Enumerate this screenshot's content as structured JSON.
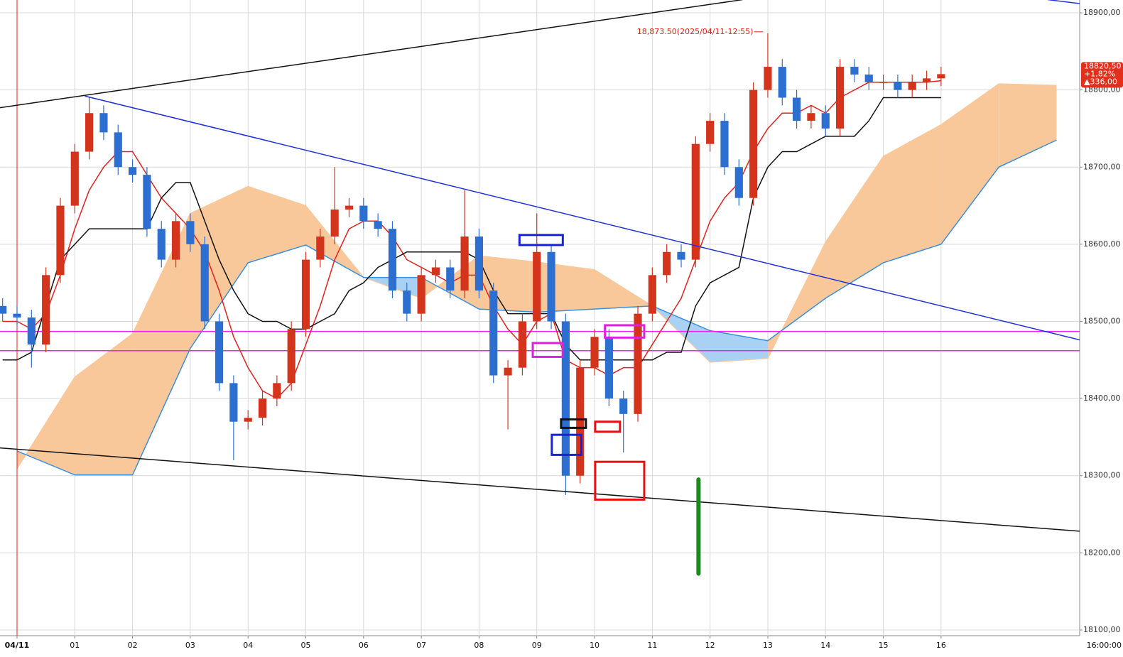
{
  "chart_data": {
    "type": "candlestick",
    "x": [
      -0.25,
      0,
      0.25,
      0.5,
      0.75,
      1,
      1.25,
      1.5,
      1.75,
      2,
      2.25,
      2.5,
      2.75,
      3,
      3.25,
      3.5,
      3.75,
      4,
      4.25,
      4.5,
      4.75,
      5,
      5.25,
      5.5,
      5.75,
      6,
      6.25,
      6.5,
      6.75,
      7,
      7.25,
      7.5,
      7.75,
      8,
      8.25,
      8.5,
      8.75,
      9,
      9.25,
      9.5,
      9.75,
      10,
      10.25,
      10.5,
      10.75,
      11,
      11.25,
      11.5,
      11.75,
      12,
      12.25,
      12.5,
      12.75,
      13,
      13.25,
      13.5,
      13.75,
      14,
      14.25,
      14.5,
      14.75,
      15,
      15.25,
      15.5,
      15.75,
      16
    ],
    "open": [
      18520,
      18510,
      18505,
      18470,
      18560,
      18650,
      18720,
      18770,
      18745,
      18700,
      18690,
      18620,
      18580,
      18630,
      18600,
      18500,
      18420,
      18370,
      18375,
      18400,
      18420,
      18490,
      18580,
      18610,
      18645,
      18650,
      18630,
      18620,
      18540,
      18510,
      18560,
      18570,
      18540,
      18610,
      18540,
      18430,
      18440,
      18500,
      18590,
      18500,
      18300,
      18440,
      18480,
      18400,
      18380,
      18510,
      18560,
      18590,
      18580,
      18730,
      18760,
      18700,
      18660,
      18800,
      18830,
      18790,
      18760,
      18770,
      18750,
      18830,
      18820,
      18810,
      18810,
      18800,
      18810,
      18815
    ],
    "high": [
      18530,
      18520,
      18515,
      18570,
      18660,
      18730,
      18790,
      18780,
      18755,
      18710,
      18700,
      18630,
      18640,
      18640,
      18610,
      18510,
      18430,
      18385,
      18410,
      18430,
      18500,
      18590,
      18620,
      18700,
      18660,
      18660,
      18640,
      18630,
      18550,
      18570,
      18580,
      18580,
      18670,
      18620,
      18550,
      18450,
      18510,
      18640,
      18600,
      18510,
      18450,
      18490,
      18490,
      18410,
      18520,
      18570,
      18600,
      18600,
      18740,
      18770,
      18770,
      18710,
      18810,
      18873.5,
      18840,
      18800,
      18780,
      18780,
      18840,
      18840,
      18830,
      18820,
      18820,
      18820,
      18825,
      18830
    ],
    "low": [
      18500,
      18495,
      18440,
      18460,
      18550,
      18640,
      18710,
      18735,
      18690,
      18680,
      18610,
      18570,
      18570,
      18590,
      18490,
      18410,
      18320,
      18360,
      18365,
      18390,
      18410,
      18480,
      18570,
      18600,
      18635,
      18620,
      18610,
      18530,
      18500,
      18500,
      18550,
      18530,
      18530,
      18530,
      18420,
      18360,
      18430,
      18490,
      18490,
      18275,
      18290,
      18430,
      18390,
      18330,
      18370,
      18500,
      18550,
      18570,
      18570,
      18720,
      18690,
      18650,
      18650,
      18790,
      18780,
      18750,
      18750,
      18740,
      18740,
      18810,
      18800,
      18800,
      18790,
      18790,
      18800,
      18805
    ],
    "close": [
      18510,
      18505,
      18470,
      18560,
      18650,
      18720,
      18770,
      18745,
      18700,
      18690,
      18620,
      18580,
      18630,
      18600,
      18500,
      18420,
      18370,
      18375,
      18400,
      18420,
      18490,
      18580,
      18610,
      18645,
      18650,
      18630,
      18620,
      18540,
      18510,
      18560,
      18570,
      18540,
      18610,
      18540,
      18430,
      18440,
      18500,
      18590,
      18500,
      18300,
      18440,
      18480,
      18400,
      18380,
      18510,
      18560,
      18590,
      18580,
      18730,
      18760,
      18700,
      18660,
      18800,
      18830,
      18790,
      18760,
      18770,
      18750,
      18830,
      18820,
      18810,
      18810,
      18800,
      18810,
      18815,
      18820.5
    ],
    "up_color": "#d4341c",
    "down_color": "#2c6fd1",
    "lines": [
      {
        "color": "#e8201c",
        "values": [
          18500,
          18500,
          18490,
          18510,
          18560,
          18620,
          18670,
          18700,
          18720,
          18720,
          18690,
          18660,
          18640,
          18620,
          18590,
          18540,
          18480,
          18440,
          18410,
          18400,
          18420,
          18470,
          18520,
          18580,
          18620,
          18630,
          18630,
          18610,
          18580,
          18570,
          18560,
          18550,
          18560,
          18560,
          18520,
          18490,
          18470,
          18500,
          18510,
          18450,
          18440,
          18440,
          18430,
          18440,
          18440,
          18470,
          18500,
          18530,
          18580,
          18630,
          18660,
          18680,
          18720,
          18750,
          18770,
          18770,
          18780,
          18770,
          18790,
          18800,
          18810,
          18810,
          18810,
          18810,
          18810,
          18812
        ]
      },
      {
        "color": "#111111",
        "values": [
          18450,
          18450,
          18460,
          18520,
          18580,
          18600,
          18620,
          18620,
          18620,
          18620,
          18620,
          18660,
          18680,
          18680,
          18630,
          18580,
          18540,
          18510,
          18500,
          18500,
          18490,
          18490,
          18500,
          18510,
          18540,
          18550,
          18570,
          18580,
          18590,
          18590,
          18590,
          18590,
          18590,
          18580,
          18540,
          18510,
          18510,
          18510,
          18510,
          18470,
          18450,
          18450,
          18450,
          18450,
          18450,
          18450,
          18460,
          18460,
          18520,
          18550,
          18560,
          18570,
          18660,
          18700,
          18720,
          18720,
          18730,
          18740,
          18740,
          18740,
          18760,
          18790,
          18790,
          18790,
          18790,
          18790
        ]
      }
    ],
    "cloud": {
      "x": [
        0,
        1,
        2,
        3,
        4,
        5,
        6,
        7,
        8,
        9,
        10,
        11,
        12,
        13,
        14,
        15,
        16,
        17,
        18
      ],
      "span_a": [
        18309,
        18428,
        18484,
        18640,
        18675,
        18650,
        18557,
        18530,
        18585,
        18577,
        18567,
        18520,
        18447,
        18452,
        18603,
        18714,
        18755,
        18808,
        18806
      ],
      "span_b": [
        18332,
        18301,
        18301,
        18465,
        18576,
        18599,
        18557,
        18557,
        18516,
        18512,
        18516,
        18520,
        18488,
        18475,
        18530,
        18576,
        18600,
        18700,
        18735
      ],
      "up_color": "#f9c89a",
      "down_color": "#a8d1f3",
      "edge_color": "#3a8fe0"
    },
    "trendlines": [
      {
        "color": "#111111",
        "x": [
          -0.295,
          12.56
        ],
        "y": [
          18777,
          18917
        ]
      },
      {
        "color": "#1f2fd8",
        "x": [
          1.18,
          18.4
        ],
        "y": [
          18792,
          18476
        ]
      },
      {
        "color": "#111111",
        "x": [
          -0.295,
          18.4
        ],
        "y": [
          18336,
          18228
        ]
      },
      {
        "color": "#1f2fd8",
        "x": [
          17.85,
          18.4
        ],
        "y": [
          18917,
          18912
        ]
      },
      {
        "color": "#1a8a1a",
        "x": [
          11.8,
          11.8
        ],
        "y": [
          18295,
          18173
        ]
      }
    ],
    "hlines": [
      {
        "value": 18487,
        "color": "#f020f0"
      },
      {
        "value": 18462,
        "color": "#f020f0"
      }
    ],
    "vlines": [
      {
        "value": 0,
        "color": "#e82020"
      }
    ],
    "boxes": [
      {
        "color": "#1a22d8",
        "x": [
          8.7,
          9.45
        ],
        "y": [
          18599,
          18612
        ]
      },
      {
        "color": "#1a22d8",
        "x": [
          9.26,
          9.77
        ],
        "y": [
          18327,
          18353
        ]
      },
      {
        "color": "#e020e0",
        "x": [
          8.93,
          9.45
        ],
        "y": [
          18454,
          18472
        ]
      },
      {
        "color": "#e020e0",
        "x": [
          10.18,
          10.86
        ],
        "y": [
          18479,
          18495
        ]
      },
      {
        "color": "#111111",
        "x": [
          9.42,
          9.85
        ],
        "y": [
          18362,
          18373
        ]
      },
      {
        "color": "#e81010",
        "x": [
          10.01,
          10.44
        ],
        "y": [
          18357,
          18370
        ]
      },
      {
        "color": "#e81010",
        "x": [
          10.01,
          10.86
        ],
        "y": [
          18269,
          18318
        ]
      }
    ],
    "max_marker": {
      "text": "18,873.50(2025/04/11-12:55)",
      "x": 12.92,
      "value": 18873.5
    },
    "last_price": {
      "label": "18820,50",
      "value": 18820.5,
      "change_pct": "+1,82%",
      "change": "▲336,00"
    },
    "cursor_time": "16:00:00",
    "xlim": [
      -0.295,
      18.4
    ],
    "ylim": [
      18092.6,
      18916.6
    ],
    "xticks": [
      {
        "value": 0,
        "label": "04/11"
      },
      {
        "value": 1,
        "label": "01"
      },
      {
        "value": 2,
        "label": "02"
      },
      {
        "value": 3,
        "label": "03"
      },
      {
        "value": 4,
        "label": "04"
      },
      {
        "value": 5,
        "label": "05"
      },
      {
        "value": 6,
        "label": "06"
      },
      {
        "value": 7,
        "label": "07"
      },
      {
        "value": 8,
        "label": "08"
      },
      {
        "value": 9,
        "label": "09"
      },
      {
        "value": 10,
        "label": "10"
      },
      {
        "value": 11,
        "label": "11"
      },
      {
        "value": 12,
        "label": "12"
      },
      {
        "value": 13,
        "label": "13"
      },
      {
        "value": 14,
        "label": "14"
      },
      {
        "value": 15,
        "label": "15"
      },
      {
        "value": 16,
        "label": "16"
      }
    ],
    "yticks": [
      {
        "value": 18100,
        "label": "18100,00"
      },
      {
        "value": 18200,
        "label": "18200,00"
      },
      {
        "value": 18300,
        "label": "18300,00"
      },
      {
        "value": 18400,
        "label": "18400,00"
      },
      {
        "value": 18500,
        "label": "18500,00"
      },
      {
        "value": 18600,
        "label": "18600,00"
      },
      {
        "value": 18700,
        "label": "18700,00"
      },
      {
        "value": 18800,
        "label": "18800,00"
      },
      {
        "value": 18900,
        "label": "18900,00"
      }
    ],
    "grid": true
  }
}
